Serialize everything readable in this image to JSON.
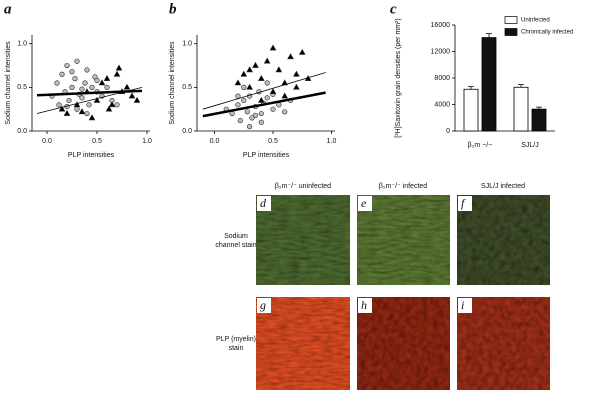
{
  "chart_data": [
    {
      "type": "scatter",
      "panel_label": "a",
      "x_label": "PLP intensities",
      "y_label": "Sodium channel intensities",
      "xlim": [
        -0.15,
        1.03
      ],
      "ylim": [
        0,
        1.1
      ],
      "xticks": [
        {
          "value": 0,
          "label": "0.0"
        },
        0.5,
        {
          "value": 1,
          "label": "1.0"
        }
      ],
      "yticks": [
        {
          "value": 0,
          "label": "0.0"
        },
        0.5,
        {
          "value": 1,
          "label": "1.0"
        }
      ],
      "series": [
        {
          "marker": "circle",
          "color": "#bdbdbd",
          "x": [
            0.05,
            0.1,
            0.12,
            0.15,
            0.18,
            0.2,
            0.22,
            0.25,
            0.28,
            0.3,
            0.32,
            0.35,
            0.38,
            0.4,
            0.42,
            0.45,
            0.48,
            0.5,
            0.55,
            0.6,
            0.65,
            0.7,
            0.3,
            0.25,
            0.4,
            0.5,
            0.2,
            0.35
          ],
          "values": [
            0.4,
            0.55,
            0.3,
            0.65,
            0.45,
            0.75,
            0.35,
            0.5,
            0.6,
            0.8,
            0.42,
            0.38,
            0.55,
            0.7,
            0.3,
            0.5,
            0.62,
            0.45,
            0.4,
            0.5,
            0.35,
            0.3,
            0.25,
            0.68,
            0.2,
            0.58,
            0.28,
            0.48
          ]
        },
        {
          "marker": "triangle",
          "color": "#000000",
          "x": [
            0.15,
            0.2,
            0.3,
            0.35,
            0.4,
            0.5,
            0.55,
            0.6,
            0.65,
            0.7,
            0.75,
            0.8,
            0.85,
            0.9,
            0.72,
            0.62,
            0.45
          ],
          "values": [
            0.25,
            0.2,
            0.3,
            0.22,
            0.45,
            0.35,
            0.55,
            0.6,
            0.3,
            0.65,
            0.45,
            0.5,
            0.4,
            0.35,
            0.72,
            0.25,
            0.15
          ]
        }
      ],
      "fit_lines": [
        {
          "stroke": 2.5,
          "x": [
            -0.1,
            0.95
          ],
          "values": [
            0.41,
            0.46
          ]
        },
        {
          "stroke": 0.8,
          "x": [
            -0.1,
            0.95
          ],
          "values": [
            0.2,
            0.5
          ]
        }
      ]
    },
    {
      "type": "scatter",
      "panel_label": "b",
      "x_label": "PLP intensities",
      "y_label": "Sodium channel intensities",
      "xlim": [
        -0.15,
        1.03
      ],
      "ylim": [
        0,
        1.1
      ],
      "xticks": [
        {
          "value": 0,
          "label": "0.0"
        },
        0.5,
        {
          "value": 1,
          "label": "1.0"
        }
      ],
      "yticks": [
        {
          "value": 0,
          "label": "0.0"
        },
        0.5,
        {
          "value": 1,
          "label": "1.0"
        }
      ],
      "series": [
        {
          "marker": "circle",
          "color": "#bdbdbd",
          "x": [
            0.1,
            0.15,
            0.2,
            0.22,
            0.25,
            0.28,
            0.3,
            0.32,
            0.35,
            0.38,
            0.4,
            0.42,
            0.45,
            0.5,
            0.55,
            0.6,
            0.65,
            0.3,
            0.25,
            0.2,
            0.4,
            0.5,
            0.35,
            0.45
          ],
          "values": [
            0.25,
            0.2,
            0.3,
            0.12,
            0.35,
            0.22,
            0.4,
            0.15,
            0.28,
            0.45,
            0.2,
            0.32,
            0.38,
            0.25,
            0.3,
            0.22,
            0.35,
            0.05,
            0.5,
            0.4,
            0.1,
            0.42,
            0.18,
            0.55
          ]
        },
        {
          "marker": "triangle",
          "color": "#000000",
          "x": [
            0.2,
            0.25,
            0.3,
            0.35,
            0.4,
            0.45,
            0.5,
            0.55,
            0.6,
            0.65,
            0.7,
            0.75,
            0.8,
            0.5,
            0.6,
            0.4,
            0.3,
            0.7
          ],
          "values": [
            0.55,
            0.65,
            0.5,
            0.75,
            0.6,
            0.8,
            0.45,
            0.7,
            0.55,
            0.85,
            0.65,
            0.9,
            0.6,
            0.95,
            0.4,
            0.35,
            0.7,
            0.5
          ]
        }
      ],
      "fit_lines": [
        {
          "stroke": 0.8,
          "x": [
            -0.1,
            0.95
          ],
          "values": [
            0.25,
            0.67
          ]
        },
        {
          "stroke": 2.5,
          "x": [
            -0.1,
            0.95
          ],
          "values": [
            0.17,
            0.44
          ]
        }
      ]
    },
    {
      "type": "bar",
      "panel_label": "c",
      "y_label": "[³H]Saxitoxin grain densities (per mm²)",
      "categories": [
        "β₂m −/−",
        "SJL/J"
      ],
      "ylim": [
        0,
        16000
      ],
      "yticks": [
        0,
        4000,
        8000,
        12000,
        16000
      ],
      "legend": "upper right",
      "series": [
        {
          "name": "Uninfected",
          "color": "#ffffff",
          "values": [
            6300,
            6600
          ],
          "errors": [
            400,
            400
          ]
        },
        {
          "name": "Chronically infected",
          "color": "#111111",
          "values": [
            14100,
            3300
          ],
          "errors": [
            600,
            300
          ]
        }
      ]
    }
  ],
  "image_panels": {
    "column_headers": [
      "β₂m⁻/⁻ uninfected",
      "β₂m⁻/⁻ infected",
      "SJL/J infected"
    ],
    "row_labels": [
      [
        "Sodium",
        "channel stain"
      ],
      [
        "PLP (myelin)",
        "stain"
      ]
    ],
    "panel_letters": [
      "d",
      "e",
      "f",
      "g",
      "h",
      "i"
    ]
  }
}
